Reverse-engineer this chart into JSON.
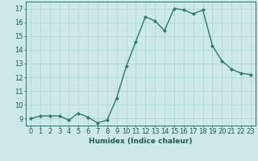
{
  "x": [
    0,
    1,
    2,
    3,
    4,
    5,
    6,
    7,
    8,
    9,
    10,
    11,
    12,
    13,
    14,
    15,
    16,
    17,
    18,
    19,
    20,
    21,
    22,
    23
  ],
  "y": [
    9.0,
    9.2,
    9.2,
    9.2,
    8.9,
    9.4,
    9.1,
    8.7,
    8.9,
    10.5,
    12.8,
    14.6,
    16.4,
    16.1,
    15.4,
    17.0,
    16.9,
    16.6,
    16.9,
    14.3,
    13.2,
    12.6,
    12.3,
    12.2
  ],
  "line_color": "#2a7a6e",
  "marker": "D",
  "marker_size": 2.0,
  "bg_color": "#cce9e8",
  "grid_color": "#aad4d2",
  "axes_color": "#1a5a54",
  "xlabel": "Humidex (Indice chaleur)",
  "xlim": [
    -0.5,
    23.5
  ],
  "ylim": [
    8.5,
    17.5
  ],
  "yticks": [
    9,
    10,
    11,
    12,
    13,
    14,
    15,
    16,
    17
  ],
  "xticks": [
    0,
    1,
    2,
    3,
    4,
    5,
    6,
    7,
    8,
    9,
    10,
    11,
    12,
    13,
    14,
    15,
    16,
    17,
    18,
    19,
    20,
    21,
    22,
    23
  ],
  "xlabel_fontsize": 6.5,
  "tick_fontsize": 6.0,
  "line_width": 1.0
}
